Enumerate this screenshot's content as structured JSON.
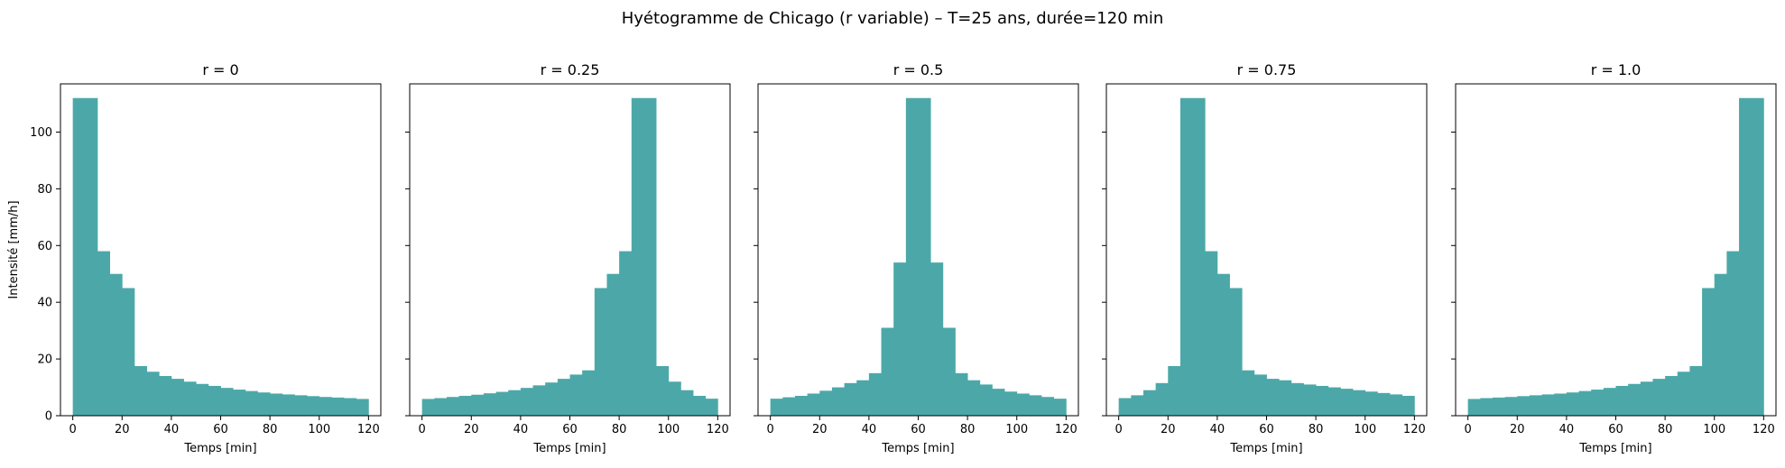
{
  "figure": {
    "suptitle": "Hyétogramme de Chicago (r variable) – T=25 ans, durée=120 min"
  },
  "chart_data": [
    {
      "type": "bar",
      "title": "r = 0",
      "xlabel": "Temps [min]",
      "ylabel": "Intensité [mm/h]",
      "bin_width": 5,
      "x": [
        0,
        5,
        10,
        15,
        20,
        25,
        30,
        35,
        40,
        45,
        50,
        55,
        60,
        65,
        70,
        75,
        80,
        85,
        90,
        95,
        100,
        105,
        110,
        115
      ],
      "values": [
        112,
        112,
        58,
        50,
        45,
        17.5,
        15.5,
        14,
        13,
        12,
        11.2,
        10.5,
        9.8,
        9.2,
        8.7,
        8.2,
        7.8,
        7.5,
        7.2,
        6.9,
        6.6,
        6.4,
        6.2,
        5.9
      ],
      "xlim": [
        -5,
        125
      ],
      "ylim": [
        0,
        117
      ],
      "xticks": [
        0,
        20,
        40,
        60,
        80,
        100,
        120
      ],
      "yticks": [
        0,
        20,
        40,
        60,
        80,
        100
      ],
      "color": "#4ca8a8"
    },
    {
      "type": "bar",
      "title": "r = 0.25",
      "xlabel": "Temps [min]",
      "bin_width": 5,
      "x": [
        0,
        5,
        10,
        15,
        20,
        25,
        30,
        35,
        40,
        45,
        50,
        55,
        60,
        65,
        70,
        75,
        80,
        85,
        90,
        95,
        100,
        105,
        110,
        115
      ],
      "values": [
        5.9,
        6.2,
        6.6,
        7.0,
        7.4,
        7.9,
        8.4,
        9.0,
        9.8,
        10.7,
        11.7,
        13.0,
        14.5,
        16.0,
        45,
        50,
        58,
        112,
        112,
        17.5,
        12,
        9,
        7,
        6
      ],
      "xlim": [
        -5,
        125
      ],
      "ylim": [
        0,
        117
      ],
      "xticks": [
        0,
        20,
        40,
        60,
        80,
        100,
        120
      ],
      "yticks": [
        0,
        20,
        40,
        60,
        80,
        100
      ],
      "color": "#4ca8a8"
    },
    {
      "type": "bar",
      "title": "r = 0.5",
      "xlabel": "Temps [min]",
      "bin_width": 5,
      "x": [
        0,
        5,
        10,
        15,
        20,
        25,
        30,
        35,
        40,
        45,
        50,
        55,
        60,
        65,
        70,
        75,
        80,
        85,
        90,
        95,
        100,
        105,
        110,
        115
      ],
      "values": [
        6,
        6.5,
        7,
        7.8,
        8.8,
        10,
        11.5,
        12.5,
        15,
        31,
        54,
        112,
        112,
        54,
        31,
        15,
        12.5,
        11,
        9.5,
        8.5,
        7.8,
        7.2,
        6.6,
        6
      ],
      "xlim": [
        -5,
        125
      ],
      "ylim": [
        0,
        117
      ],
      "xticks": [
        0,
        20,
        40,
        60,
        80,
        100,
        120
      ],
      "yticks": [
        0,
        20,
        40,
        60,
        80,
        100
      ],
      "color": "#4ca8a8"
    },
    {
      "type": "bar",
      "title": "r = 0.75",
      "xlabel": "Temps [min]",
      "bin_width": 5,
      "x": [
        0,
        5,
        10,
        15,
        20,
        25,
        30,
        35,
        40,
        45,
        50,
        55,
        60,
        65,
        70,
        75,
        80,
        85,
        90,
        95,
        100,
        105,
        110,
        115
      ],
      "values": [
        6.2,
        7.2,
        9,
        11.5,
        17.5,
        112,
        112,
        58,
        50,
        45,
        16,
        14.5,
        13,
        12.5,
        11.5,
        11,
        10.5,
        10,
        9.5,
        9,
        8.5,
        8,
        7.5,
        7
      ],
      "xlim": [
        -5,
        125
      ],
      "ylim": [
        0,
        117
      ],
      "xticks": [
        0,
        20,
        40,
        60,
        80,
        100,
        120
      ],
      "yticks": [
        0,
        20,
        40,
        60,
        80,
        100
      ],
      "color": "#4ca8a8"
    },
    {
      "type": "bar",
      "title": "r = 1.0",
      "xlabel": "Temps [min]",
      "bin_width": 5,
      "x": [
        0,
        5,
        10,
        15,
        20,
        25,
        30,
        35,
        40,
        45,
        50,
        55,
        60,
        65,
        70,
        75,
        80,
        85,
        90,
        95,
        100,
        105,
        110,
        115
      ],
      "values": [
        5.9,
        6.2,
        6.4,
        6.6,
        6.9,
        7.2,
        7.5,
        7.8,
        8.2,
        8.7,
        9.2,
        9.8,
        10.5,
        11.2,
        12,
        13,
        14,
        15.5,
        17.5,
        45,
        50,
        58,
        112,
        112
      ],
      "xlim": [
        -5,
        125
      ],
      "ylim": [
        0,
        117
      ],
      "xticks": [
        0,
        20,
        40,
        60,
        80,
        100,
        120
      ],
      "yticks": [
        0,
        20,
        40,
        60,
        80,
        100
      ],
      "color": "#4ca8a8"
    }
  ]
}
